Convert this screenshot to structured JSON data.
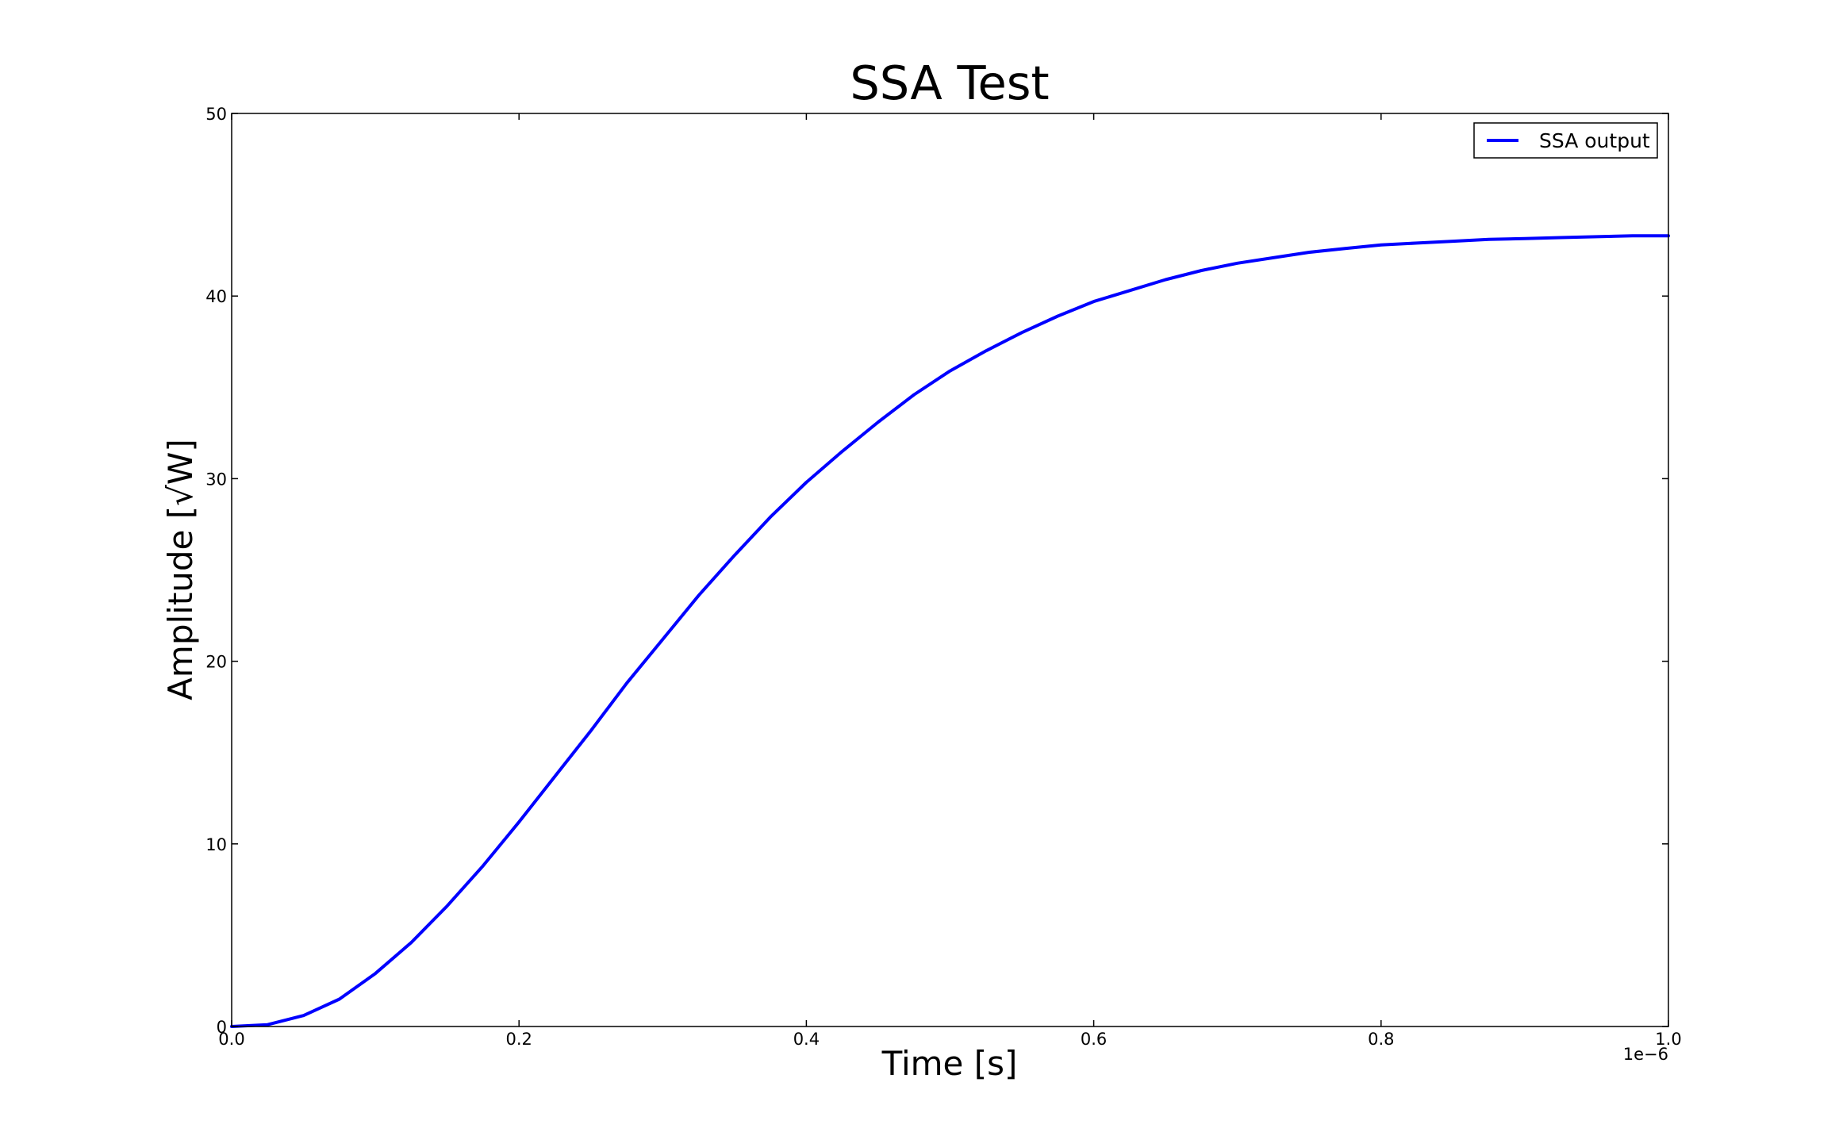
{
  "chart_data": {
    "type": "line",
    "title": "SSA Test",
    "xlabel": "Time [s]",
    "ylabel": "Amplitude [√W]",
    "x_offset_label": "1e−6",
    "xlim": [
      0.0,
      1.0
    ],
    "ylim": [
      0,
      50
    ],
    "x_ticks": [
      "0.0",
      "0.2",
      "0.4",
      "0.6",
      "0.8",
      "1.0"
    ],
    "y_ticks": [
      "0",
      "10",
      "20",
      "30",
      "40",
      "50"
    ],
    "grid": false,
    "legend_position": "top-right",
    "series": [
      {
        "name": "SSA output",
        "color": "#0000ff",
        "x": [
          0.0,
          0.025,
          0.05,
          0.075,
          0.1,
          0.125,
          0.15,
          0.175,
          0.2,
          0.225,
          0.25,
          0.275,
          0.3,
          0.325,
          0.35,
          0.375,
          0.4,
          0.425,
          0.45,
          0.475,
          0.5,
          0.525,
          0.55,
          0.575,
          0.6,
          0.625,
          0.65,
          0.675,
          0.7,
          0.725,
          0.75,
          0.775,
          0.8,
          0.825,
          0.85,
          0.875,
          0.9,
          0.925,
          0.95,
          0.975,
          1.0
        ],
        "y": [
          0.0,
          0.1,
          0.6,
          1.5,
          2.9,
          4.6,
          6.6,
          8.8,
          11.2,
          13.7,
          16.2,
          18.8,
          21.2,
          23.6,
          25.8,
          27.9,
          29.8,
          31.5,
          33.1,
          34.6,
          35.9,
          37.0,
          38.0,
          38.9,
          39.7,
          40.3,
          40.9,
          41.4,
          41.8,
          42.1,
          42.4,
          42.6,
          42.8,
          42.9,
          43.0,
          43.1,
          43.15,
          43.2,
          43.25,
          43.3,
          43.3
        ]
      }
    ]
  }
}
